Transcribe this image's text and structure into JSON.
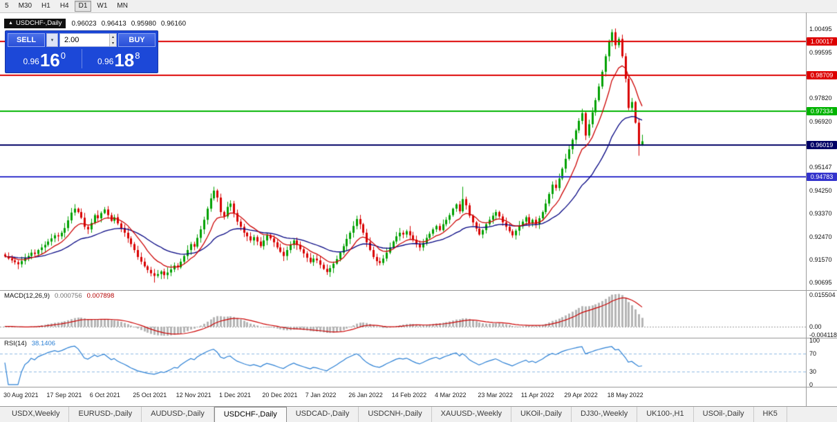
{
  "toolbar": {
    "timeframes": [
      {
        "label": "5",
        "active": false
      },
      {
        "label": "M30",
        "active": false
      },
      {
        "label": "H1",
        "active": false
      },
      {
        "label": "H4",
        "active": false
      },
      {
        "label": "D1",
        "active": true
      },
      {
        "label": "W1",
        "active": false
      },
      {
        "label": "MN",
        "active": false
      }
    ]
  },
  "icons": {
    "triangle_up": "▲",
    "caret_up": "▴",
    "caret_down": "▾"
  },
  "chart_header": {
    "symbol": "USDCHF-,Daily",
    "open": "0.96023",
    "high": "0.96413",
    "low": "0.95980",
    "close": "0.96160"
  },
  "trade_panel": {
    "sell_label": "SELL",
    "buy_label": "BUY",
    "volume": "2.00",
    "sell_price": {
      "prefix": "0.96",
      "big": "16",
      "sup": "0"
    },
    "buy_price": {
      "prefix": "0.96",
      "big": "18",
      "sup": "8"
    }
  },
  "price_axis": {
    "ticks": [
      "1.00495",
      "0.99595",
      "0.97820",
      "0.96920",
      "0.95147",
      "0.94250",
      "0.93370",
      "0.92470",
      "0.91570",
      "0.90695"
    ],
    "tick_values": [
      1.00495,
      0.99595,
      0.9782,
      0.9692,
      0.95147,
      0.9425,
      0.9337,
      0.9247,
      0.9157,
      0.90695
    ],
    "badges": [
      {
        "label": "1.00017",
        "value": 1.00017,
        "color": "#dd0000"
      },
      {
        "label": "0.98709",
        "value": 0.98709,
        "color": "#dd0000"
      },
      {
        "label": "0.97334",
        "value": 0.97334,
        "color": "#00b400"
      },
      {
        "label": "0.96019",
        "value": 0.96019,
        "color": "#000066"
      },
      {
        "label": "0.94783",
        "value": 0.94783,
        "color": "#3333cc"
      }
    ]
  },
  "macd_panel": {
    "title": "MACD(12,26,9)",
    "value_main": "0.000756",
    "value_signal": "0.007898",
    "axis": [
      {
        "label": "0.015504",
        "value": 0.015504
      },
      {
        "label": "0.00",
        "value": 0
      },
      {
        "label": "-0.004118",
        "value": -0.004118
      }
    ]
  },
  "rsi_panel": {
    "title": "RSI(14)",
    "value": "38.1406",
    "axis": [
      {
        "label": "100",
        "value": 100
      },
      {
        "label": "70",
        "value": 70
      },
      {
        "label": "30",
        "value": 30
      },
      {
        "label": "0",
        "value": 0
      }
    ]
  },
  "date_axis": [
    "30 Aug 2021",
    "17 Sep 2021",
    "6 Oct 2021",
    "25 Oct 2021",
    "12 Nov 2021",
    "1 Dec 2021",
    "20 Dec 2021",
    "7 Jan 2022",
    "26 Jan 2022",
    "14 Feb 2022",
    "4 Mar 2022",
    "23 Mar 2022",
    "11 Apr 2022",
    "29 Apr 2022",
    "18 May 2022"
  ],
  "tabs": [
    {
      "label": "USDX,Weekly",
      "active": false
    },
    {
      "label": "EURUSD-,Daily",
      "active": false
    },
    {
      "label": "AUDUSD-,Daily",
      "active": false
    },
    {
      "label": "USDCHF-,Daily",
      "active": true
    },
    {
      "label": "USDCAD-,Daily",
      "active": false
    },
    {
      "label": "USDCNH-,Daily",
      "active": false
    },
    {
      "label": "XAUUSD-,Weekly",
      "active": false
    },
    {
      "label": "UKOil-,Daily",
      "active": false
    },
    {
      "label": "DJ30-,Weekly",
      "active": false
    },
    {
      "label": "UK100-,H1",
      "active": false
    },
    {
      "label": "USOil-,Daily",
      "active": false
    },
    {
      "label": "HK5",
      "active": false
    }
  ],
  "chart_data": {
    "type": "candlestick",
    "symbol": "USDCHF",
    "timeframe": "Daily",
    "ylim_main": [
      0.904,
      1.0112
    ],
    "ylim_macd": [
      -0.0056,
      0.0175
    ],
    "ylim_rsi": [
      -5,
      105
    ],
    "first_open": 0.9178,
    "up_color": "#00a000",
    "down_color": "#d90000",
    "ma_fast_period": 10,
    "ma_slow_period": 30,
    "ma_fast_color": "#cc0000",
    "ma_slow_color": "#000080",
    "macd_params": [
      12,
      26,
      9
    ],
    "macd_hist_color": "#b4b4b4",
    "macd_signal_color": "#cc0000",
    "rsi_period": 14,
    "rsi_color": "#2a7fd4",
    "rsi_level_color": "#8cb8e0",
    "closes": [
      0.917,
      0.9162,
      0.9155,
      0.9148,
      0.914,
      0.9152,
      0.9165,
      0.9172,
      0.9185,
      0.918,
      0.9195,
      0.9205,
      0.9215,
      0.9228,
      0.924,
      0.9252,
      0.9248,
      0.9262,
      0.928,
      0.931,
      0.934,
      0.9355,
      0.9342,
      0.932,
      0.9285,
      0.9275,
      0.93,
      0.933,
      0.9318,
      0.9338,
      0.9352,
      0.933,
      0.9308,
      0.9322,
      0.9298,
      0.928,
      0.9262,
      0.924,
      0.9218,
      0.9195,
      0.9168,
      0.915,
      0.9132,
      0.9118,
      0.9105,
      0.9095,
      0.9102,
      0.9112,
      0.9098,
      0.9108,
      0.912,
      0.9135,
      0.9128,
      0.915,
      0.9172,
      0.9195,
      0.9218,
      0.9208,
      0.9242,
      0.9275,
      0.9312,
      0.9355,
      0.9395,
      0.9425,
      0.9398,
      0.9342,
      0.9325,
      0.9362,
      0.9375,
      0.9338,
      0.9305,
      0.9285,
      0.9262,
      0.9248,
      0.9232,
      0.9245,
      0.9228,
      0.921,
      0.9232,
      0.9252,
      0.924,
      0.9225,
      0.9205,
      0.9188,
      0.9172,
      0.9195,
      0.9215,
      0.9232,
      0.9215,
      0.9198,
      0.9182,
      0.9165,
      0.9148,
      0.9162,
      0.9155,
      0.9138,
      0.9122,
      0.911,
      0.9125,
      0.9142,
      0.916,
      0.9185,
      0.921,
      0.9238,
      0.9262,
      0.9288,
      0.9315,
      0.9295,
      0.9262,
      0.9225,
      0.9195,
      0.9168,
      0.9152,
      0.9145,
      0.9162,
      0.9185,
      0.9205,
      0.9228,
      0.9248,
      0.9262,
      0.9255,
      0.9268,
      0.9252,
      0.9235,
      0.9218,
      0.9205,
      0.9222,
      0.9242,
      0.9258,
      0.9275,
      0.9288,
      0.9272,
      0.9295,
      0.9312,
      0.933,
      0.9355,
      0.9372,
      0.9345,
      0.9392,
      0.9368,
      0.9328,
      0.9302,
      0.9278,
      0.9255,
      0.9272,
      0.9295,
      0.9312,
      0.9328,
      0.9342,
      0.9325,
      0.9302,
      0.9285,
      0.9268,
      0.9252,
      0.927,
      0.9288,
      0.9305,
      0.9322,
      0.9298,
      0.9312,
      0.9295,
      0.9318,
      0.9342,
      0.9375,
      0.9412,
      0.9448,
      0.9435,
      0.9472,
      0.951,
      0.9548,
      0.9585,
      0.9622,
      0.9658,
      0.9695,
      0.9725,
      0.9638,
      0.9682,
      0.9728,
      0.9775,
      0.9828,
      0.9885,
      0.9945,
      1.0002,
      1.0038,
      0.9988,
      1.0012,
      0.9945,
      0.9858,
      0.9745,
      0.9768,
      0.9688,
      0.96023,
      0.9616
    ],
    "wick_overrides": {
      "45": {
        "l": 0.9069
      },
      "63": {
        "h": 0.944
      },
      "106": {
        "h": 0.9328
      },
      "138": {
        "h": 0.944
      },
      "183": {
        "h": 1.00495
      },
      "191": {
        "l": 0.956
      },
      "192": {
        "h": 0.96413,
        "l": 0.9598
      }
    }
  }
}
